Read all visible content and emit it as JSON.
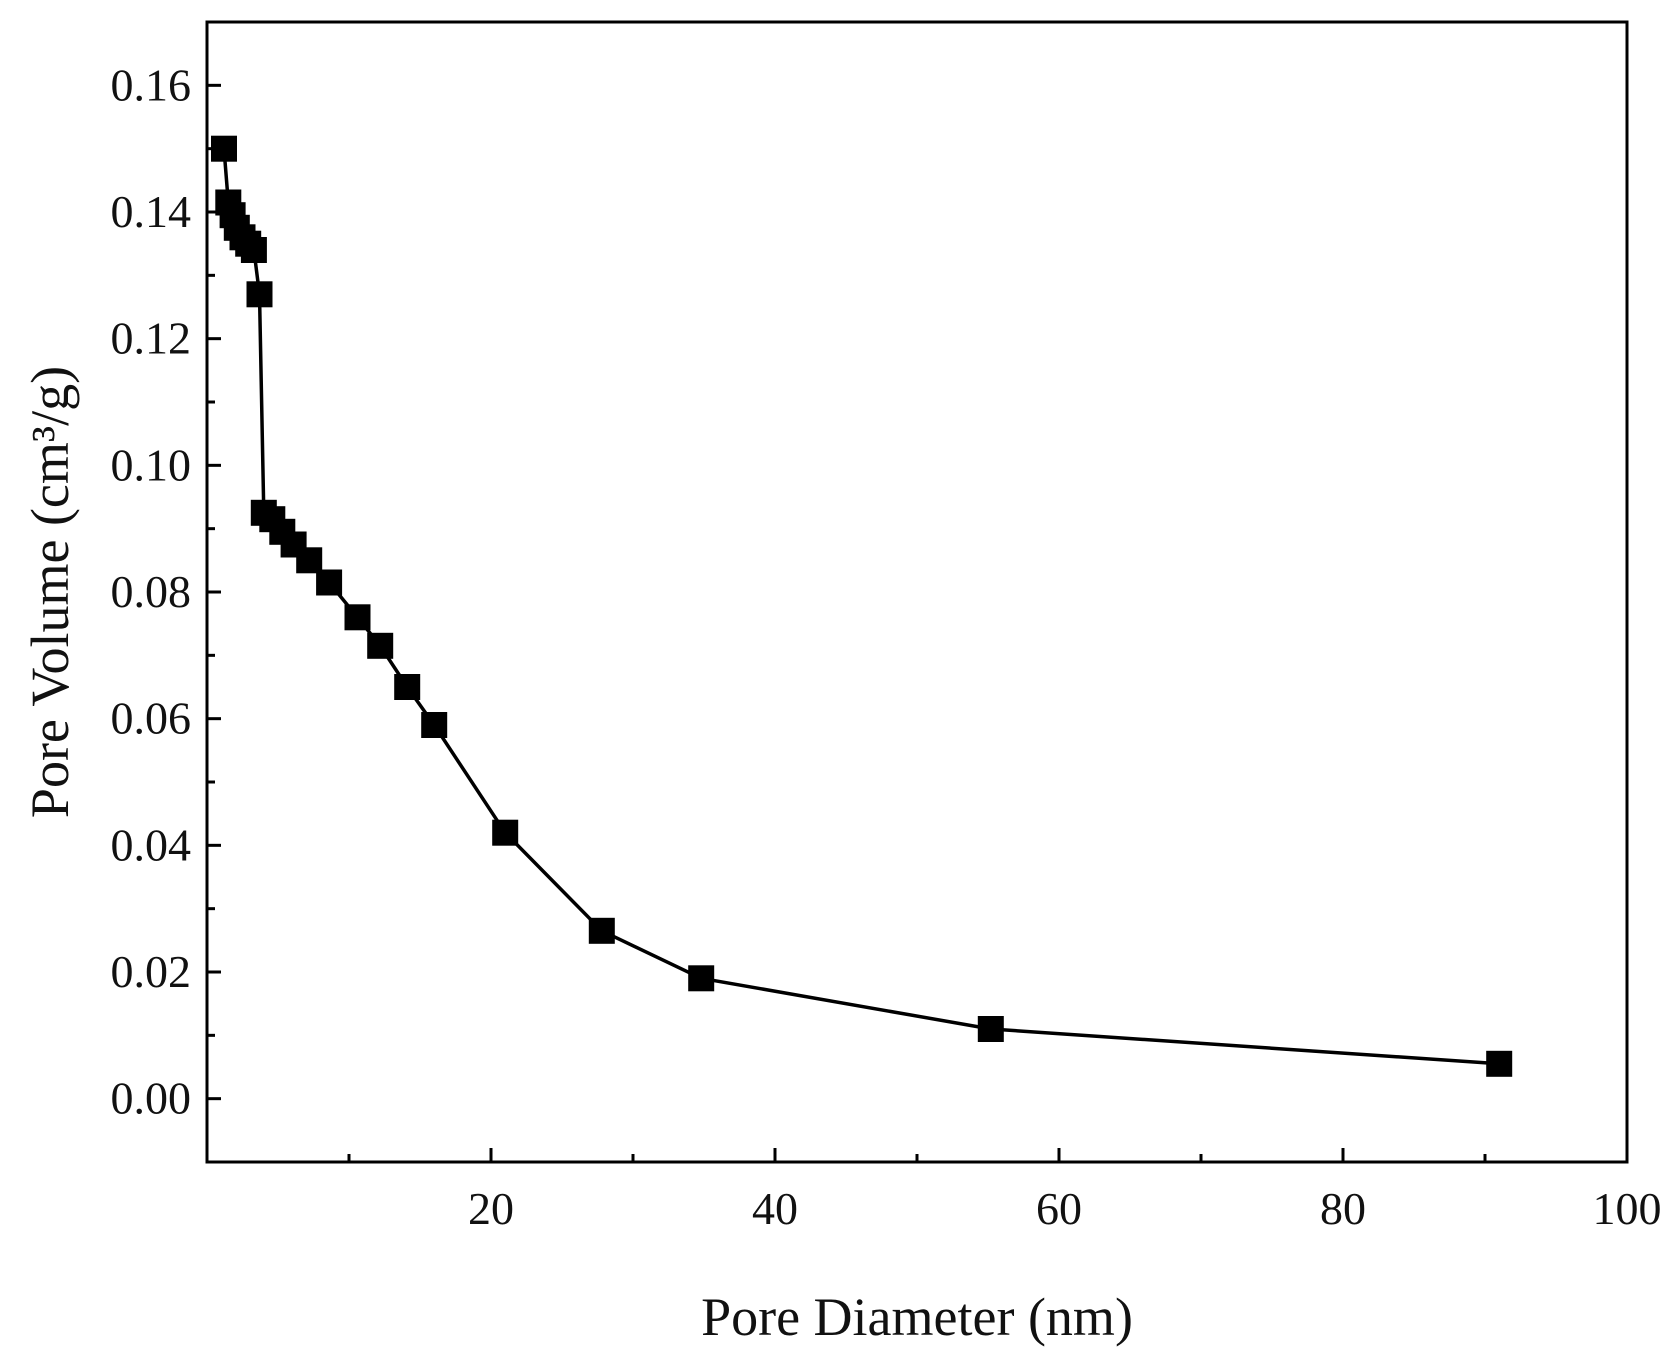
{
  "chart_data": {
    "type": "line",
    "markers": "filled-square",
    "xlabel": "Pore Diameter (nm)",
    "ylabel": "Pore Volume (cm³/g)",
    "xlim": [
      0,
      100
    ],
    "ylim": [
      -0.01,
      0.17
    ],
    "xticks": [
      {
        "value": 20,
        "label": "20"
      },
      {
        "value": 40,
        "label": "40"
      },
      {
        "value": 60,
        "label": "60"
      },
      {
        "value": 80,
        "label": "80"
      },
      {
        "value": 100,
        "label": "100"
      }
    ],
    "yticks": [
      {
        "value": 0.0,
        "label": "0.00"
      },
      {
        "value": 0.02,
        "label": "0.02"
      },
      {
        "value": 0.04,
        "label": "0.04"
      },
      {
        "value": 0.06,
        "label": "0.06"
      },
      {
        "value": 0.08,
        "label": "0.08"
      },
      {
        "value": 0.1,
        "label": "0.10"
      },
      {
        "value": 0.12,
        "label": "0.12"
      },
      {
        "value": 0.14,
        "label": "0.14"
      },
      {
        "value": 0.16,
        "label": "0.16"
      }
    ],
    "grid": false,
    "series": [
      {
        "color": "#000000",
        "points": [
          {
            "x": 1.2,
            "y": 0.15
          },
          {
            "x": 1.5,
            "y": 0.1415
          },
          {
            "x": 1.8,
            "y": 0.1395
          },
          {
            "x": 2.1,
            "y": 0.1375
          },
          {
            "x": 2.5,
            "y": 0.136
          },
          {
            "x": 2.9,
            "y": 0.135
          },
          {
            "x": 3.3,
            "y": 0.134
          },
          {
            "x": 3.7,
            "y": 0.127
          },
          {
            "x": 4.0,
            "y": 0.0925
          },
          {
            "x": 4.6,
            "y": 0.0915
          },
          {
            "x": 5.3,
            "y": 0.0895
          },
          {
            "x": 6.1,
            "y": 0.0875
          },
          {
            "x": 7.2,
            "y": 0.085
          },
          {
            "x": 8.6,
            "y": 0.0815
          },
          {
            "x": 10.6,
            "y": 0.076
          },
          {
            "x": 12.2,
            "y": 0.0715
          },
          {
            "x": 14.1,
            "y": 0.065
          },
          {
            "x": 16.0,
            "y": 0.059
          },
          {
            "x": 21.0,
            "y": 0.042
          },
          {
            "x": 27.8,
            "y": 0.0265
          },
          {
            "x": 34.8,
            "y": 0.019
          },
          {
            "x": 55.2,
            "y": 0.011
          },
          {
            "x": 91.0,
            "y": 0.0055
          }
        ]
      }
    ]
  }
}
